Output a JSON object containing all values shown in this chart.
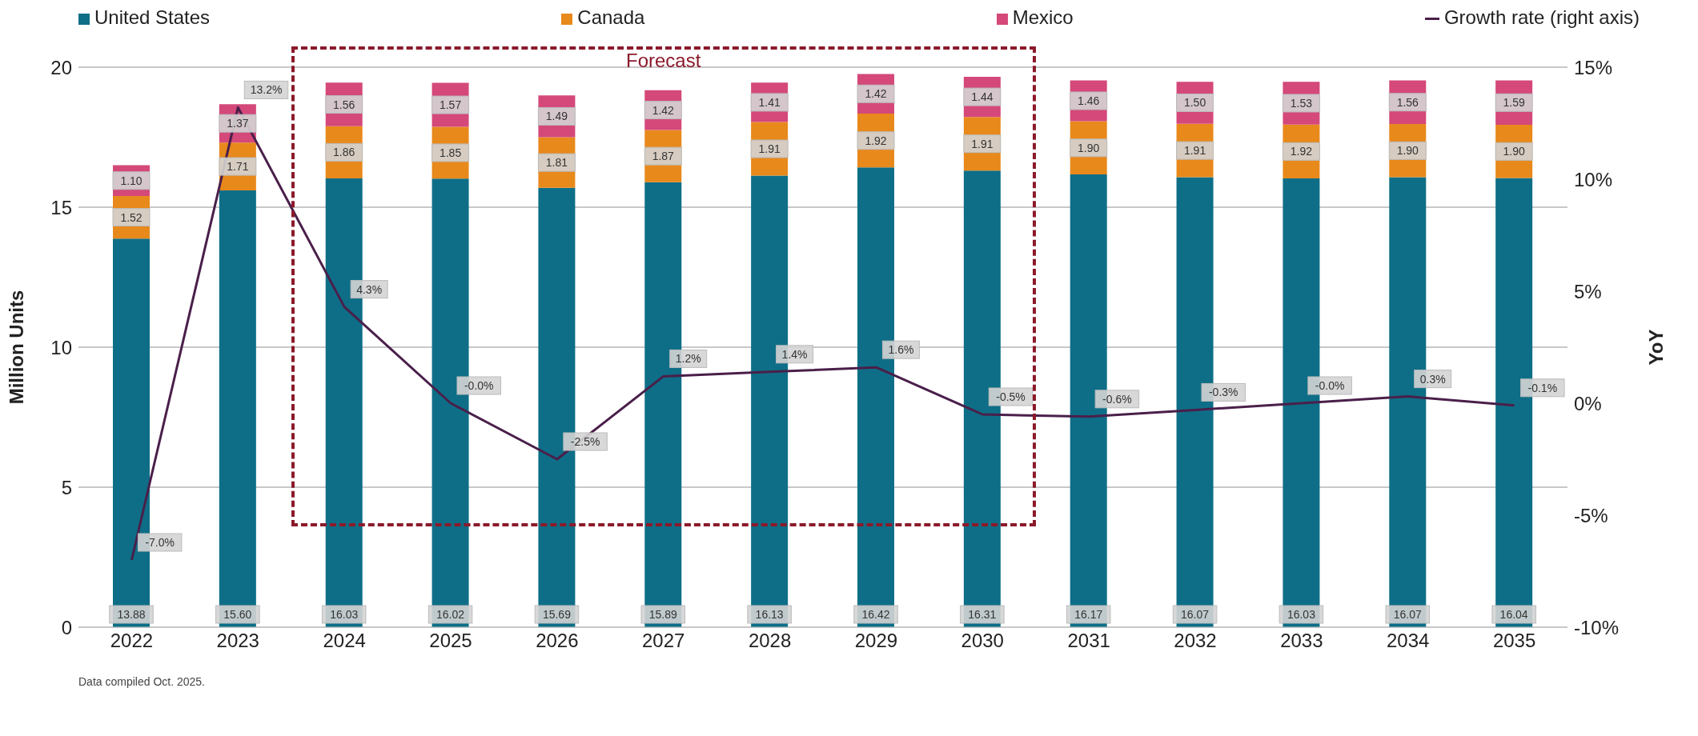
{
  "chart_data": {
    "type": "bar",
    "stacked": true,
    "ylabel": "Million Units",
    "y2label": "YoY",
    "categories": [
      "2022",
      "2023",
      "2024",
      "2025",
      "2026",
      "2027",
      "2028",
      "2029",
      "2030",
      "2031",
      "2032",
      "2033",
      "2034",
      "2035"
    ],
    "series": [
      {
        "name": "United States",
        "color": "#0e6e87",
        "values": [
          13.88,
          15.6,
          16.03,
          16.02,
          15.69,
          15.89,
          16.13,
          16.42,
          16.31,
          16.17,
          16.07,
          16.03,
          16.07,
          16.04
        ],
        "value_labels": [
          "13.88",
          "15.60",
          "16.03",
          "16.02",
          "15.69",
          "15.89",
          "16.13",
          "16.42",
          "16.31",
          "16.17",
          "16.07",
          "16.03",
          "16.07",
          "16.04"
        ]
      },
      {
        "name": "Canada",
        "color": "#e8891c",
        "values": [
          1.52,
          1.71,
          1.86,
          1.85,
          1.81,
          1.87,
          1.91,
          1.92,
          1.91,
          1.9,
          1.91,
          1.92,
          1.9,
          1.9
        ],
        "value_labels": [
          "1.52",
          "1.71",
          "1.86",
          "1.85",
          "1.81",
          "1.87",
          "1.91",
          "1.92",
          "1.91",
          "1.90",
          "1.91",
          "1.92",
          "1.90",
          "1.90"
        ]
      },
      {
        "name": "Mexico",
        "color": "#d4487a",
        "values": [
          1.1,
          1.37,
          1.56,
          1.57,
          1.49,
          1.42,
          1.41,
          1.42,
          1.44,
          1.46,
          1.5,
          1.53,
          1.56,
          1.59
        ],
        "value_labels": [
          "1.10",
          "1.37",
          "1.56",
          "1.57",
          "1.49",
          "1.42",
          "1.41",
          "1.42",
          "1.44",
          "1.46",
          "1.50",
          "1.53",
          "1.56",
          "1.59"
        ]
      },
      {
        "name": "Growth rate (right axis)",
        "type": "line",
        "axis": "y2",
        "color": "#4a1f4a",
        "values": [
          -7.0,
          13.2,
          4.3,
          -0.0,
          -2.5,
          1.2,
          1.4,
          1.6,
          -0.5,
          -0.6,
          -0.3,
          -0.0,
          0.3,
          -0.1
        ],
        "value_labels": [
          "-7.0%",
          "13.2%",
          "4.3%",
          "-0.0%",
          "-2.5%",
          "1.2%",
          "1.4%",
          "1.6%",
          "-0.5%",
          "-0.6%",
          "-0.3%",
          "-0.0%",
          "0.3%",
          "-0.1%"
        ]
      }
    ],
    "ylim": [
      0,
      20
    ],
    "yticks": [
      0,
      5,
      10,
      15,
      20
    ],
    "y2lim": [
      -10,
      15
    ],
    "y2ticks": [
      {
        "value": -10,
        "label": "-10%"
      },
      {
        "value": -5,
        "label": "-5%"
      },
      {
        "value": 0,
        "label": "0%"
      },
      {
        "value": 5,
        "label": "5%"
      },
      {
        "value": 10,
        "label": "10%"
      },
      {
        "value": 15,
        "label": "15%"
      }
    ],
    "grid": "y",
    "legend": "top",
    "marker": "none",
    "line_style": "solid",
    "annotations": [
      "Forecast",
      "Data compiled Oct. 2025."
    ]
  }
}
